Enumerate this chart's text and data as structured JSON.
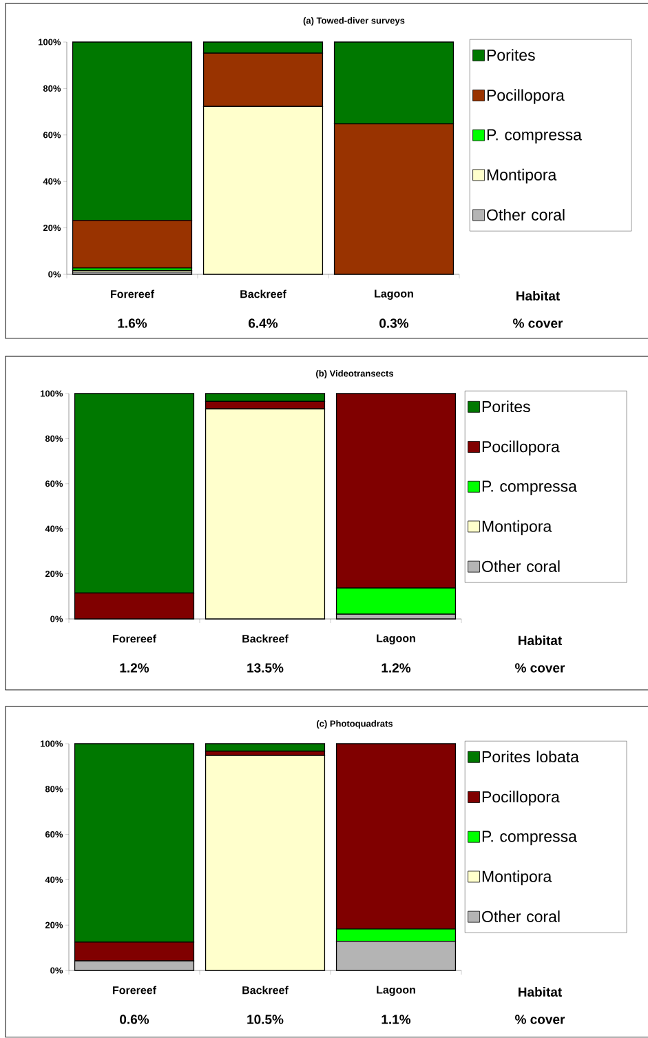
{
  "chart_data": [
    {
      "type": "bar",
      "stacked": true,
      "title": "(a) Towed-diver surveys",
      "categories": [
        "Forereef",
        "Backreef",
        "Lagoon"
      ],
      "series": [
        {
          "name": "Other coral",
          "color": "#b4b4b4",
          "values": [
            1.0,
            0,
            0
          ]
        },
        {
          "name": "Montipora",
          "color": "#ffffcc",
          "values": [
            0.7,
            72.3,
            0
          ]
        },
        {
          "name": "P. compressa",
          "color": "#00ff00",
          "values": [
            1.0,
            0,
            0
          ]
        },
        {
          "name": "Pocillopora",
          "color": "#993300",
          "values": [
            20.5,
            22.9,
            64.8
          ]
        },
        {
          "name": "Porites",
          "color": "#007800",
          "values": [
            76.8,
            4.8,
            35.2
          ]
        }
      ],
      "ylim": [
        0,
        100
      ],
      "yticks": [
        {
          "value": 0,
          "label": "0%"
        },
        {
          "value": 20,
          "label": "20%"
        },
        {
          "value": 40,
          "label": "40%"
        },
        {
          "value": 60,
          "label": "60%"
        },
        {
          "value": 80,
          "label": "80%"
        },
        {
          "value": 100,
          "label": "100%"
        }
      ],
      "legend": "right",
      "annotations": [
        "1.6%",
        "6.4%",
        "0.3%",
        "Habitat",
        "% cover"
      ]
    },
    {
      "type": "bar",
      "stacked": true,
      "title": "(b) Videotransects",
      "categories": [
        "Forereef",
        "Backreef",
        "Lagoon"
      ],
      "series": [
        {
          "name": "Other coral",
          "color": "#b4b4b4",
          "values": [
            0,
            0,
            2.1
          ]
        },
        {
          "name": "Montipora",
          "color": "#ffffcc",
          "values": [
            0,
            93.2,
            0
          ]
        },
        {
          "name": "P. compressa",
          "color": "#00ff00",
          "values": [
            0,
            0,
            11.6
          ]
        },
        {
          "name": "Pocillopora",
          "color": "#800000",
          "values": [
            11.5,
            3.3,
            86.3
          ]
        },
        {
          "name": "Porites",
          "color": "#007800",
          "values": [
            88.5,
            3.5,
            0
          ]
        }
      ],
      "ylim": [
        0,
        100
      ],
      "yticks": [
        {
          "value": 0,
          "label": "0%"
        },
        {
          "value": 20,
          "label": "20%"
        },
        {
          "value": 40,
          "label": "40%"
        },
        {
          "value": 60,
          "label": "60%"
        },
        {
          "value": 80,
          "label": "80%"
        },
        {
          "value": 100,
          "label": "100%"
        }
      ],
      "legend": "right",
      "annotations": [
        "1.2%",
        "13.5%",
        "1.2%",
        "Habitat",
        "% cover"
      ]
    },
    {
      "type": "bar",
      "stacked": true,
      "title": "(c) Photoquadrats",
      "categories": [
        "Forereef",
        "Backreef",
        "Lagoon"
      ],
      "series": [
        {
          "name": "Other coral",
          "color": "#b4b4b4",
          "values": [
            4.2,
            0,
            12.9
          ]
        },
        {
          "name": "Montipora",
          "color": "#ffffcc",
          "values": [
            0,
            94.8,
            0
          ]
        },
        {
          "name": "P. compressa",
          "color": "#00ff00",
          "values": [
            0,
            0,
            5.4
          ]
        },
        {
          "name": "Pocillopora",
          "color": "#800000",
          "values": [
            8.3,
            1.9,
            81.7
          ]
        },
        {
          "name": "Porites lobata",
          "color": "#007800",
          "values": [
            87.5,
            3.3,
            0
          ]
        }
      ],
      "ylim": [
        0,
        100
      ],
      "yticks": [
        {
          "value": 0,
          "label": "0%"
        },
        {
          "value": 20,
          "label": "20%"
        },
        {
          "value": 40,
          "label": "40%"
        },
        {
          "value": 60,
          "label": "60%"
        },
        {
          "value": 80,
          "label": "80%"
        },
        {
          "value": 100,
          "label": "100%"
        }
      ],
      "legend": "right",
      "annotations": [
        "0.6%",
        "10.5%",
        "1.1%",
        "Habitat",
        "% cover"
      ]
    }
  ]
}
